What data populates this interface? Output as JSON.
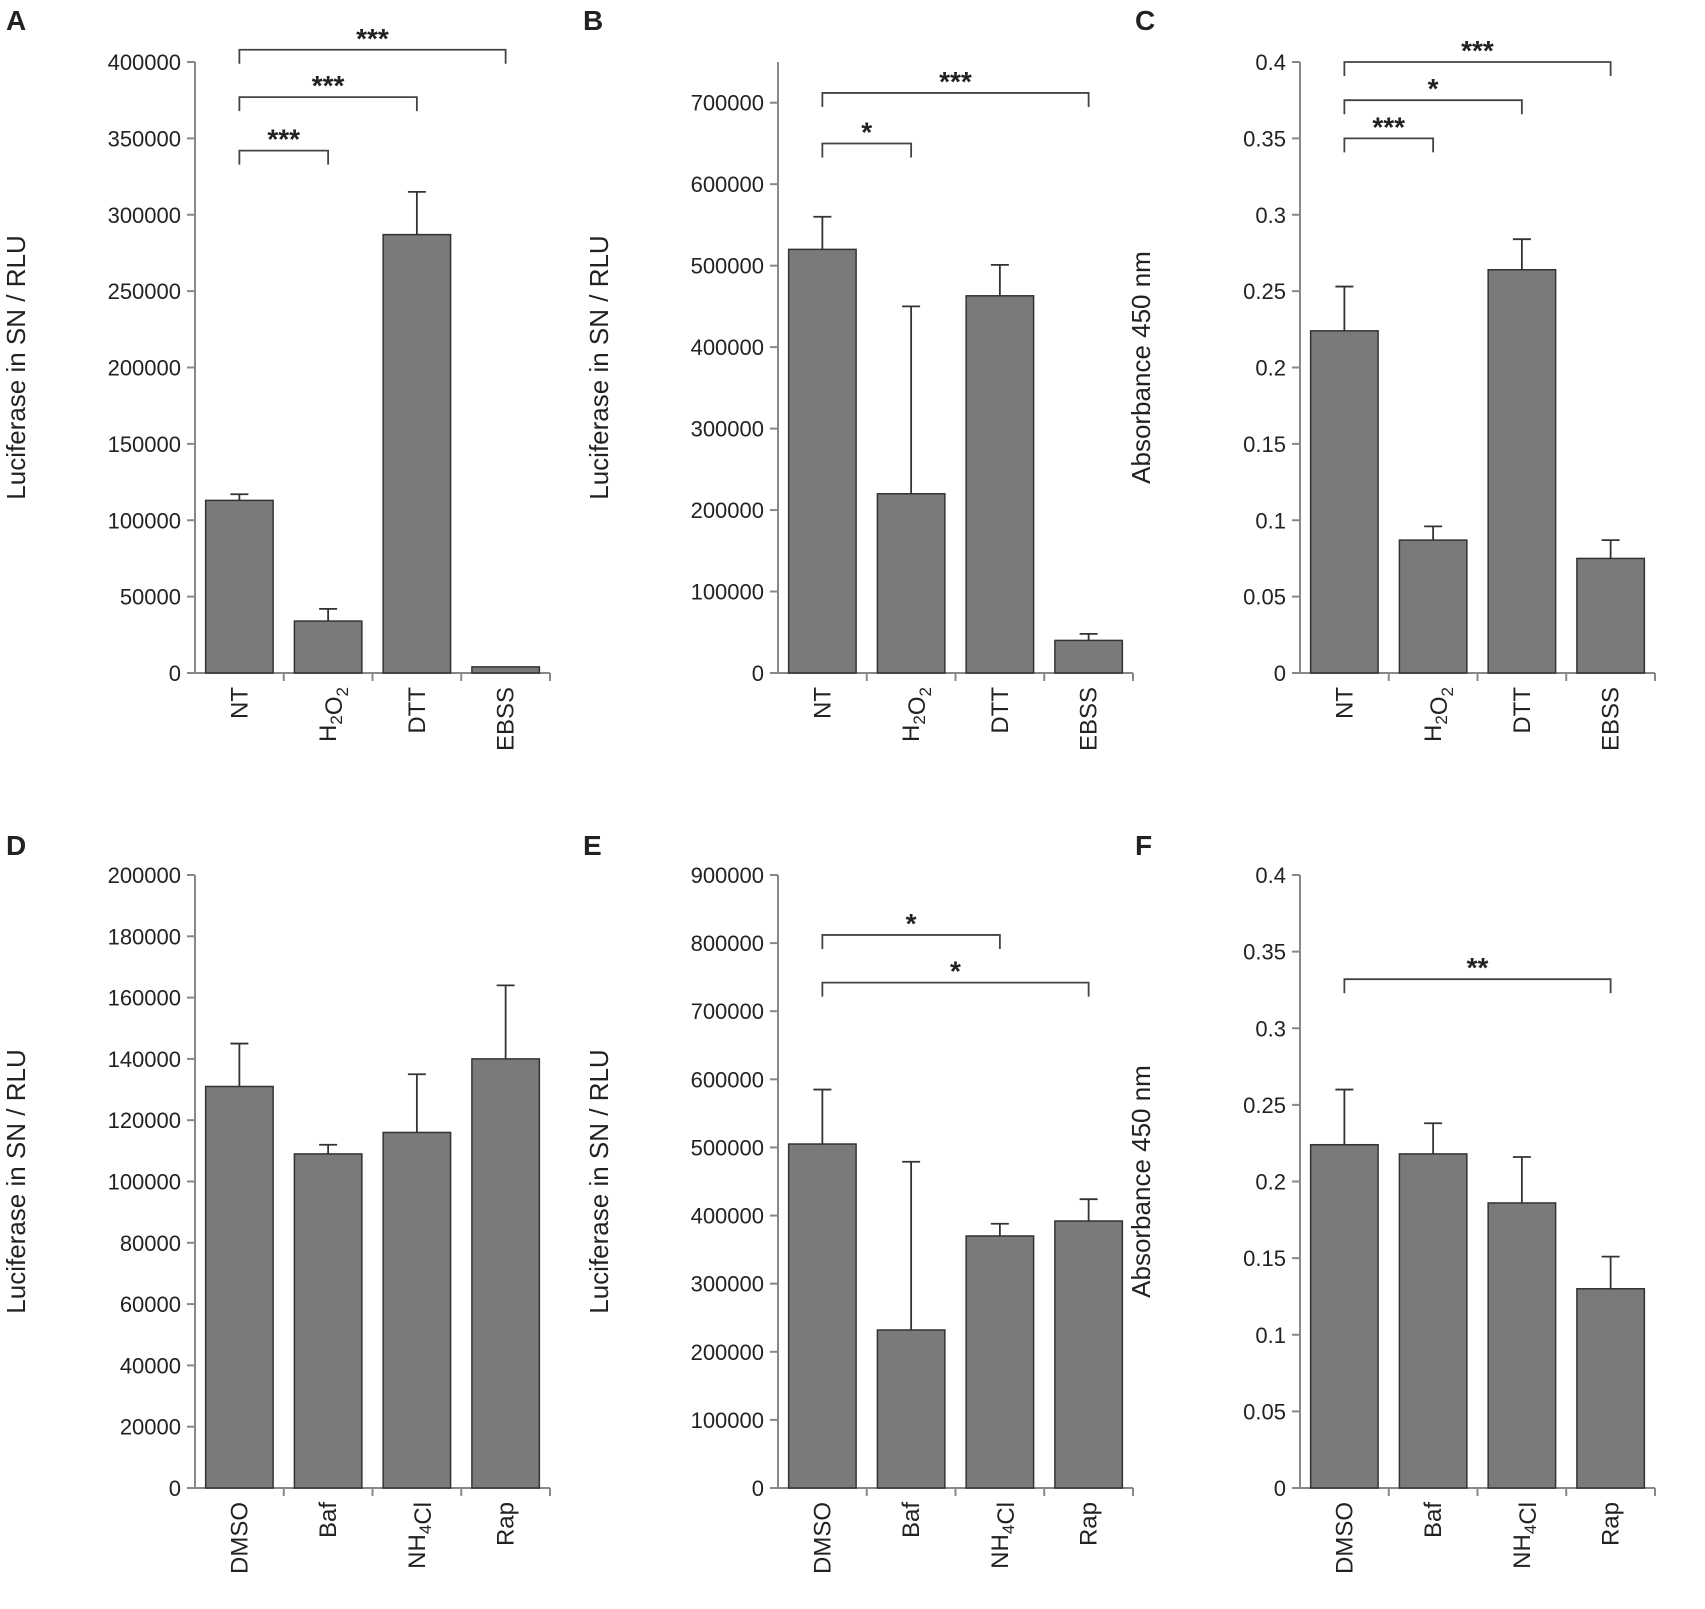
{
  "colors": {
    "bar": "#7a7a7a",
    "bar_stroke": "#333333",
    "axis": "#888888",
    "bracket": "#444444"
  },
  "chart_data": [
    {
      "panel": "A",
      "type": "bar",
      "ylabel": "Luciferase in SN / RLU",
      "ylim": [
        0,
        400000
      ],
      "yticks": [
        0,
        50000,
        100000,
        150000,
        200000,
        250000,
        300000,
        350000,
        400000
      ],
      "categories": [
        "NT",
        "H2O2",
        "DTT",
        "EBSS"
      ],
      "category_labels": [
        [
          {
            "t": "NT"
          }
        ],
        [
          {
            "t": "H"
          },
          {
            "t": "2",
            "sub": true
          },
          {
            "t": "O"
          },
          {
            "t": "2",
            "sub": true
          }
        ],
        [
          {
            "t": "DTT"
          }
        ],
        [
          {
            "t": "EBSS"
          }
        ]
      ],
      "values": [
        113000,
        34000,
        287000,
        4000
      ],
      "errors": [
        4000,
        8000,
        28000,
        0
      ],
      "significance": [
        {
          "from": 0,
          "to": 1,
          "level": 342000,
          "label": "***"
        },
        {
          "from": 0,
          "to": 2,
          "level": 377000,
          "label": "***"
        },
        {
          "from": 0,
          "to": 3,
          "level": 408000,
          "label": "***"
        }
      ]
    },
    {
      "panel": "B",
      "type": "bar",
      "ylabel": "Luciferase in SN / RLU",
      "ylim": [
        0,
        750000
      ],
      "yticks": [
        0,
        100000,
        200000,
        300000,
        400000,
        500000,
        600000,
        700000
      ],
      "categories": [
        "NT",
        "H2O2",
        "DTT",
        "EBSS"
      ],
      "category_labels": [
        [
          {
            "t": "NT"
          }
        ],
        [
          {
            "t": "H"
          },
          {
            "t": "2",
            "sub": true
          },
          {
            "t": "O"
          },
          {
            "t": "2",
            "sub": true
          }
        ],
        [
          {
            "t": "DTT"
          }
        ],
        [
          {
            "t": "EBSS"
          }
        ]
      ],
      "values": [
        520000,
        220000,
        463000,
        40000
      ],
      "errors": [
        40000,
        230000,
        38000,
        8000
      ],
      "significance": [
        {
          "from": 0,
          "to": 1,
          "level": 650000,
          "label": "*"
        },
        {
          "from": 0,
          "to": 3,
          "level": 712000,
          "label": "***"
        }
      ]
    },
    {
      "panel": "C",
      "type": "bar",
      "ylabel": "Absorbance 450 nm",
      "ylim": [
        0,
        0.4
      ],
      "yticks": [
        0,
        0.05,
        0.1,
        0.15,
        0.2,
        0.25,
        0.3,
        0.35,
        0.4
      ],
      "categories": [
        "NT",
        "H2O2",
        "DTT",
        "EBSS"
      ],
      "category_labels": [
        [
          {
            "t": "NT"
          }
        ],
        [
          {
            "t": "H"
          },
          {
            "t": "2",
            "sub": true
          },
          {
            "t": "O"
          },
          {
            "t": "2",
            "sub": true
          }
        ],
        [
          {
            "t": "DTT"
          }
        ],
        [
          {
            "t": "EBSS"
          }
        ]
      ],
      "values": [
        0.224,
        0.087,
        0.264,
        0.075
      ],
      "errors": [
        0.029,
        0.009,
        0.02,
        0.012
      ],
      "significance": [
        {
          "from": 0,
          "to": 1,
          "level": 0.35,
          "label": "***"
        },
        {
          "from": 0,
          "to": 2,
          "level": 0.375,
          "label": "*"
        },
        {
          "from": 0,
          "to": 3,
          "level": 0.4,
          "label": "***"
        }
      ]
    },
    {
      "panel": "D",
      "type": "bar",
      "ylabel": "Luciferase in SN / RLU",
      "ylim": [
        0,
        200000
      ],
      "yticks": [
        0,
        20000,
        40000,
        60000,
        80000,
        100000,
        120000,
        140000,
        160000,
        180000,
        200000
      ],
      "categories": [
        "DMSO",
        "Baf",
        "NH4Cl",
        "Rap"
      ],
      "category_labels": [
        [
          {
            "t": "DMSO"
          }
        ],
        [
          {
            "t": "Baf"
          }
        ],
        [
          {
            "t": "NH"
          },
          {
            "t": "4",
            "sub": true
          },
          {
            "t": "Cl"
          }
        ],
        [
          {
            "t": "Rap"
          }
        ]
      ],
      "values": [
        131000,
        109000,
        116000,
        140000
      ],
      "errors": [
        14000,
        3000,
        19000,
        24000
      ],
      "significance": []
    },
    {
      "panel": "E",
      "type": "bar",
      "ylabel": "Luciferase in SN / RLU",
      "ylim": [
        0,
        900000
      ],
      "yticks": [
        0,
        100000,
        200000,
        300000,
        400000,
        500000,
        600000,
        700000,
        800000,
        900000
      ],
      "categories": [
        "DMSO",
        "Baf",
        "NH4Cl",
        "Rap"
      ],
      "category_labels": [
        [
          {
            "t": "DMSO"
          }
        ],
        [
          {
            "t": "Baf"
          }
        ],
        [
          {
            "t": "NH"
          },
          {
            "t": "4",
            "sub": true
          },
          {
            "t": "Cl"
          }
        ],
        [
          {
            "t": "Rap"
          }
        ]
      ],
      "values": [
        505000,
        232000,
        370000,
        392000
      ],
      "errors": [
        80000,
        247000,
        18000,
        32000
      ],
      "significance": [
        {
          "from": 0,
          "to": 2,
          "level": 812000,
          "label": "*"
        },
        {
          "from": 0,
          "to": 3,
          "level": 742000,
          "label": "*"
        }
      ]
    },
    {
      "panel": "F",
      "type": "bar",
      "ylabel": "Absorbance 450 nm",
      "ylim": [
        0,
        0.4
      ],
      "yticks": [
        0,
        0.05,
        0.1,
        0.15,
        0.2,
        0.25,
        0.3,
        0.35,
        0.4
      ],
      "categories": [
        "DMSO",
        "Baf",
        "NH4Cl",
        "Rap"
      ],
      "category_labels": [
        [
          {
            "t": "DMSO"
          }
        ],
        [
          {
            "t": "Baf"
          }
        ],
        [
          {
            "t": "NH"
          },
          {
            "t": "4",
            "sub": true
          },
          {
            "t": "Cl"
          }
        ],
        [
          {
            "t": "Rap"
          }
        ]
      ],
      "values": [
        0.224,
        0.218,
        0.186,
        0.13
      ],
      "errors": [
        0.036,
        0.02,
        0.03,
        0.021
      ],
      "significance": [
        {
          "from": 0,
          "to": 3,
          "level": 0.332,
          "label": "**"
        }
      ]
    }
  ]
}
